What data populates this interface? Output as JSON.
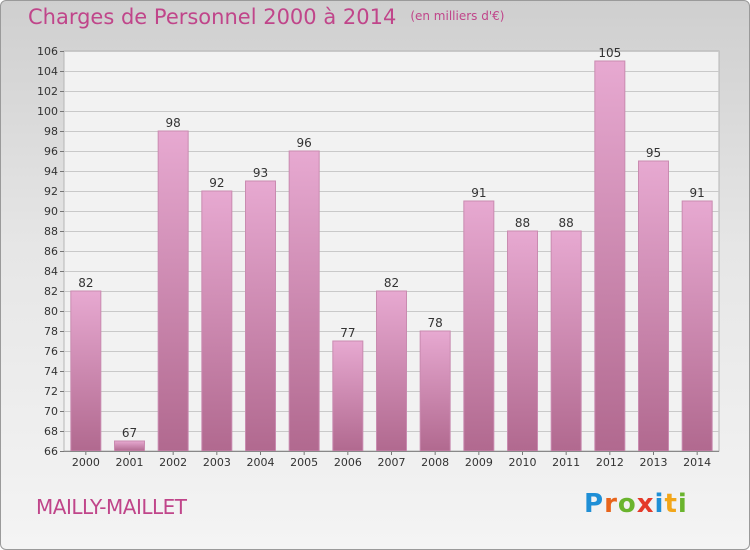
{
  "title": "Charges de Personnel 2000 à 2014",
  "subtitle": "(en milliers d'€)",
  "commune": "MAILLY-MAILLET",
  "logo": {
    "letters": [
      "P",
      "r",
      "o",
      "x",
      "i",
      "t",
      "i"
    ],
    "colors": [
      "#1f8fd6",
      "#e8641b",
      "#6ab42d",
      "#e43a2a",
      "#1f8fd6",
      "#f2a619",
      "#6ab42d"
    ]
  },
  "colors": {
    "bar_top": "#e7a9d1",
    "bar_bottom": "#b1698f",
    "title": "#c0458a"
  },
  "chart_data": {
    "type": "bar",
    "categories": [
      "2000",
      "2001",
      "2002",
      "2003",
      "2004",
      "2005",
      "2006",
      "2007",
      "2008",
      "2009",
      "2010",
      "2011",
      "2012",
      "2013",
      "2014"
    ],
    "values": [
      82,
      67,
      98,
      92,
      93,
      96,
      77,
      82,
      78,
      91,
      88,
      88,
      105,
      95,
      91
    ],
    "ylim": [
      66,
      106
    ],
    "yticks": [
      66,
      68,
      70,
      72,
      74,
      76,
      78,
      80,
      82,
      84,
      86,
      88,
      90,
      92,
      94,
      96,
      98,
      100,
      102,
      104,
      106
    ],
    "grid": true
  }
}
